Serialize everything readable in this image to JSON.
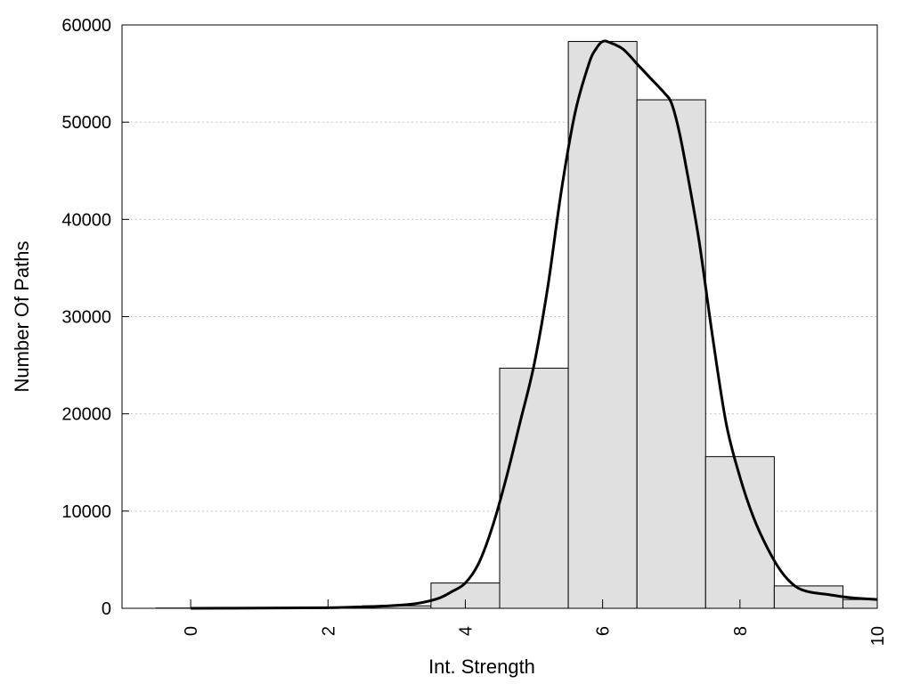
{
  "chart_data": {
    "type": "bar",
    "title": "",
    "xlabel": "Int. Strength",
    "ylabel": "Number Of Paths",
    "xlim": [
      -1,
      10
    ],
    "ylim": [
      0,
      60000
    ],
    "x_ticks": [
      0,
      2,
      4,
      6,
      8,
      10
    ],
    "y_ticks": [
      0,
      10000,
      20000,
      30000,
      40000,
      50000,
      60000
    ],
    "grid": "horizontal-dotted",
    "legend": "none",
    "bar_width": 1,
    "bars": {
      "x": [
        0,
        1,
        2,
        3,
        4,
        5,
        6,
        7,
        8,
        9,
        10
      ],
      "values": [
        30,
        60,
        100,
        250,
        2600,
        24700,
        58300,
        52300,
        15600,
        2300,
        900
      ]
    },
    "curve": {
      "x": [
        0,
        1,
        2,
        2.5,
        3,
        3.3,
        3.6,
        3.8,
        4,
        4.2,
        4.4,
        4.6,
        4.8,
        5,
        5.2,
        5.4,
        5.6,
        5.8,
        5.9,
        6,
        6.1,
        6.3,
        6.5,
        6.7,
        6.9,
        7,
        7.1,
        7.2,
        7.4,
        7.6,
        7.8,
        8,
        8.2,
        8.4,
        8.6,
        8.8,
        9,
        9.3,
        9.6,
        10
      ],
      "values": [
        0,
        20,
        60,
        150,
        300,
        500,
        1000,
        1700,
        2600,
        4700,
        8500,
        13500,
        19200,
        25000,
        33000,
        43000,
        51000,
        56000,
        57500,
        58300,
        58200,
        57500,
        56000,
        54500,
        53000,
        52000,
        49500,
        46000,
        38000,
        28000,
        19000,
        13500,
        9300,
        6200,
        3800,
        2300,
        1700,
        1400,
        1100,
        900
      ]
    },
    "colors": {
      "bar_fill": "#e0e0e0",
      "bar_stroke": "#000000",
      "curve": "#000000",
      "grid": "#c8c8c8"
    }
  }
}
